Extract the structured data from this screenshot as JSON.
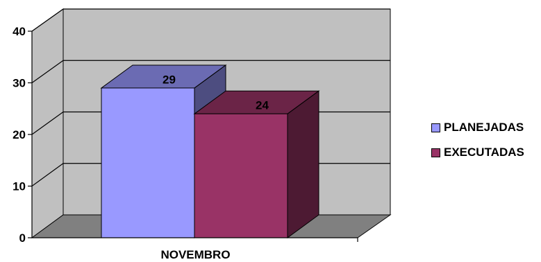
{
  "chart_data": {
    "type": "bar",
    "title": "",
    "xlabel": "",
    "ylabel": "",
    "categories": [
      "NOVEMBRO"
    ],
    "series": [
      {
        "name": "PLANEJADAS",
        "values": [
          29
        ],
        "color": "#9999ff",
        "top_color": "#6b6bb3",
        "side_color": "#4d4d80"
      },
      {
        "name": "EXECUTADAS",
        "values": [
          24
        ],
        "color": "#993366",
        "top_color": "#6b2447",
        "side_color": "#4d1a33"
      }
    ],
    "ylim": [
      0,
      40
    ],
    "yticks": [
      "0",
      "10",
      "20",
      "30",
      "40"
    ],
    "grid": true,
    "legend_position": "right",
    "data_labels": [
      "29",
      "24"
    ],
    "wall_color": "#c0c0c0",
    "floor_color": "#808080"
  }
}
